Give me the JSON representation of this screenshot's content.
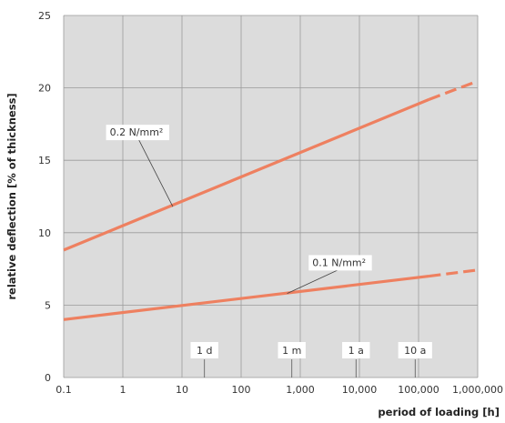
{
  "chart_data": {
    "type": "line",
    "x_scale": "log",
    "xlabel": "period of loading [h]",
    "ylabel": "relative deflection [% of thickness]",
    "xlim": [
      0.1,
      1000000
    ],
    "ylim": [
      0,
      25
    ],
    "grid": true,
    "x_ticks": [
      {
        "value": 0.1,
        "label": "0.1"
      },
      {
        "value": 1,
        "label": "1"
      },
      {
        "value": 10,
        "label": "10"
      },
      {
        "value": 100,
        "label": "100"
      },
      {
        "value": 1000,
        "label": "1,000"
      },
      {
        "value": 10000,
        "label": "10,000"
      },
      {
        "value": 100000,
        "label": "100,000"
      },
      {
        "value": 1000000,
        "label": "1,000,000"
      }
    ],
    "y_ticks": [
      {
        "value": 0,
        "label": "0"
      },
      {
        "value": 5,
        "label": "5"
      },
      {
        "value": 10,
        "label": "10"
      },
      {
        "value": 15,
        "label": "15"
      },
      {
        "value": 20,
        "label": "20"
      },
      {
        "value": 25,
        "label": "25"
      }
    ],
    "series": [
      {
        "name": "0.2 N/mm²",
        "color": "#ee8060",
        "x": [
          0.1,
          150000
        ],
        "y": [
          8.8,
          19.2
        ],
        "extrapolated": {
          "x": [
            150000,
            900000
          ],
          "y": [
            19.2,
            20.4
          ]
        },
        "label_at": {
          "x": 0.6,
          "y": 16.7
        },
        "leader_to": {
          "x": 7,
          "y": 11.8
        }
      },
      {
        "name": "0.1 N/mm²",
        "color": "#ee8060",
        "x": [
          0.1,
          150000
        ],
        "y": [
          4.0,
          7.0
        ],
        "extrapolated": {
          "x": [
            150000,
            900000
          ],
          "y": [
            7.0,
            7.4
          ]
        },
        "label_at": {
          "x": 1600,
          "y": 7.7
        },
        "leader_to": {
          "x": 600,
          "y": 5.8
        }
      }
    ],
    "time_markers": [
      {
        "label": "1 d",
        "value": 24
      },
      {
        "label": "1 m",
        "value": 720
      },
      {
        "label": "1 a",
        "value": 8760
      },
      {
        "label": "10 a",
        "value": 87600
      }
    ]
  }
}
